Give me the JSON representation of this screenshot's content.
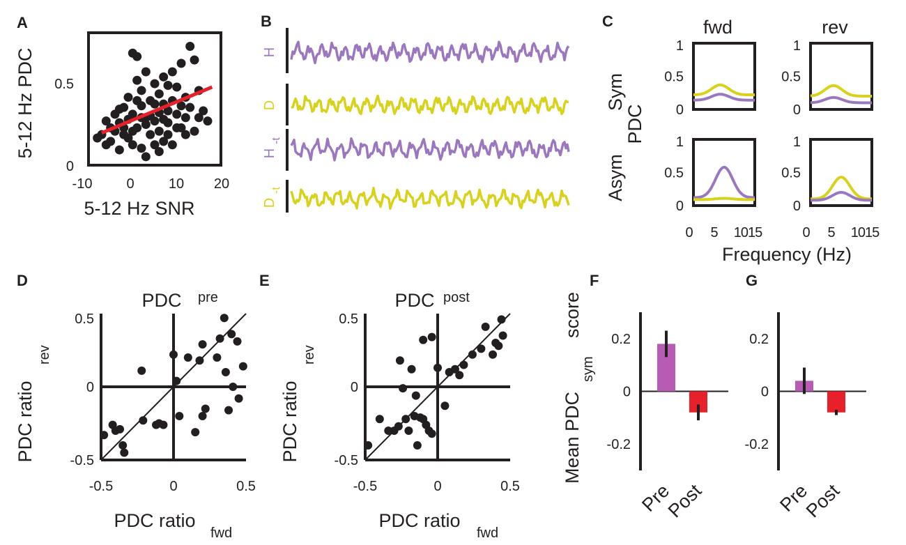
{
  "colors": {
    "purple": "#9b77c0",
    "yellow": "#d8d21c",
    "red": "#e8202a",
    "magenta": "#b75bb4",
    "black": "#231f20",
    "fitline": "#e8202a"
  },
  "chart_data": [
    {
      "panel": "A",
      "type": "scatter",
      "xlabel": "5-12 Hz SNR",
      "ylabel": "5-12 Hz PDC",
      "xlim": [
        -10,
        20
      ],
      "ylim": [
        0,
        0.78
      ],
      "xticks": [
        "-10",
        "0",
        "10",
        "20"
      ],
      "yticks": [
        "0",
        "0.5"
      ],
      "fit_line": {
        "x": [
          -7,
          18
        ],
        "y": [
          0.19,
          0.46
        ]
      },
      "points": [
        [
          -8,
          0.16
        ],
        [
          -7,
          0.18
        ],
        [
          -6,
          0.12
        ],
        [
          -5,
          0.22
        ],
        [
          -5,
          0.14
        ],
        [
          -4,
          0.3
        ],
        [
          -4,
          0.2
        ],
        [
          -3,
          0.25
        ],
        [
          -3,
          0.09
        ],
        [
          -2,
          0.34
        ],
        [
          -2,
          0.18
        ],
        [
          -1,
          0.27
        ],
        [
          -1,
          0.4
        ],
        [
          0,
          0.66
        ],
        [
          0,
          0.12
        ],
        [
          0,
          0.3
        ],
        [
          1,
          0.64
        ],
        [
          1,
          0.5
        ],
        [
          1,
          0.22
        ],
        [
          2,
          0.35
        ],
        [
          2,
          0.1
        ],
        [
          2,
          0.44
        ],
        [
          3,
          0.28
        ],
        [
          3,
          0.05
        ],
        [
          3,
          0.55
        ],
        [
          4,
          0.18
        ],
        [
          4,
          0.38
        ],
        [
          5,
          0.48
        ],
        [
          5,
          0.26
        ],
        [
          5,
          0.12
        ],
        [
          6,
          0.42
        ],
        [
          6,
          0.31
        ],
        [
          6,
          0.2
        ],
        [
          7,
          0.52
        ],
        [
          7,
          0.36
        ],
        [
          7,
          0.14
        ],
        [
          8,
          0.47
        ],
        [
          8,
          0.25
        ],
        [
          9,
          0.38
        ],
        [
          9,
          0.55
        ],
        [
          9,
          0.12
        ],
        [
          10,
          0.3
        ],
        [
          10,
          0.46
        ],
        [
          11,
          0.22
        ],
        [
          11,
          0.6
        ],
        [
          12,
          0.4
        ],
        [
          12,
          0.28
        ],
        [
          13,
          0.7
        ],
        [
          13,
          0.34
        ],
        [
          14,
          0.62
        ],
        [
          14,
          0.2
        ],
        [
          15,
          0.44
        ],
        [
          16,
          0.32
        ],
        [
          17,
          0.26
        ],
        [
          -6,
          0.26
        ],
        [
          -2,
          0.22
        ],
        [
          0,
          0.2
        ],
        [
          3,
          0.24
        ],
        [
          6,
          0.08
        ],
        [
          8,
          0.18
        ],
        [
          10,
          0.22
        ],
        [
          -3,
          0.33
        ],
        [
          1,
          0.38
        ],
        [
          4,
          0.29
        ],
        [
          7,
          0.27
        ],
        [
          11,
          0.35
        ],
        [
          -1,
          0.16
        ],
        [
          2,
          0.28
        ],
        [
          5,
          0.36
        ],
        [
          8,
          0.32
        ],
        [
          12,
          0.18
        ],
        [
          15,
          0.28
        ]
      ]
    },
    {
      "panel": "B",
      "type": "line",
      "series": [
        {
          "name": "H",
          "color": "purple"
        },
        {
          "name": "D",
          "color": "yellow"
        },
        {
          "name": "H_-t",
          "color": "purple"
        },
        {
          "name": "D_-t",
          "color": "yellow"
        }
      ]
    },
    {
      "panel": "C",
      "type": "line",
      "columns": [
        "fwd",
        "rev"
      ],
      "rows": [
        "Sym",
        "Asym"
      ],
      "ylabel": "PDC",
      "xlabel": "Frequency (Hz)",
      "xticks": [
        "0",
        "5",
        "10",
        "15"
      ],
      "yticks": [
        "0",
        "0.5",
        "1"
      ],
      "xlim": [
        0,
        16
      ],
      "ylim": [
        0,
        1
      ],
      "subplots": [
        {
          "row": "Sym",
          "col": "fwd",
          "series": [
            {
              "name": "yellow",
              "peak_freq": 7,
              "base": 0.22,
              "peak": 0.37
            },
            {
              "name": "purple",
              "peak_freq": 7,
              "base": 0.14,
              "peak": 0.23
            }
          ]
        },
        {
          "row": "Sym",
          "col": "rev",
          "series": [
            {
              "name": "yellow",
              "peak_freq": 6,
              "base": 0.2,
              "peak": 0.36
            },
            {
              "name": "purple",
              "peak_freq": 6,
              "base": 0.1,
              "peak": 0.18
            }
          ]
        },
        {
          "row": "Asym",
          "col": "fwd",
          "series": [
            {
              "name": "purple",
              "peak_freq": 8,
              "base": 0.12,
              "peak": 0.58
            },
            {
              "name": "yellow",
              "peak_freq": 8,
              "base": 0.09,
              "peak": 0.11
            }
          ]
        },
        {
          "row": "Asym",
          "col": "rev",
          "series": [
            {
              "name": "yellow",
              "peak_freq": 8,
              "base": 0.1,
              "peak": 0.43
            },
            {
              "name": "purple",
              "peak_freq": 8,
              "base": 0.08,
              "peak": 0.2
            }
          ]
        }
      ]
    },
    {
      "panel": "D",
      "type": "scatter",
      "title": "PDC",
      "title_sub": "pre",
      "xlabel": "PDC ratio",
      "xlabel_sub": "fwd",
      "ylabel": "PDC ratio",
      "ylabel_sub": "rev",
      "xlim": [
        -0.5,
        0.5
      ],
      "ylim": [
        -0.5,
        0.5
      ],
      "xticks": [
        "-0.5",
        "0",
        "0.5"
      ],
      "yticks": [
        "-0.5",
        "0",
        "0.5"
      ],
      "points": [
        [
          -0.48,
          -0.33
        ],
        [
          -0.42,
          -0.26
        ],
        [
          -0.4,
          -0.3
        ],
        [
          -0.37,
          -0.29
        ],
        [
          -0.35,
          -0.4
        ],
        [
          -0.34,
          -0.45
        ],
        [
          -0.22,
          0.11
        ],
        [
          -0.21,
          -0.23
        ],
        [
          -0.12,
          -0.26
        ],
        [
          -0.1,
          -0.25
        ],
        [
          -0.07,
          -0.26
        ],
        [
          0.0,
          0.22
        ],
        [
          0.02,
          0.04
        ],
        [
          0.04,
          -0.2
        ],
        [
          0.1,
          0.2
        ],
        [
          0.15,
          -0.31
        ],
        [
          0.18,
          0.18
        ],
        [
          0.2,
          0.29
        ],
        [
          0.22,
          -0.15
        ],
        [
          0.3,
          0.2
        ],
        [
          0.32,
          0.33
        ],
        [
          0.35,
          0.47
        ],
        [
          0.36,
          0.1
        ],
        [
          0.38,
          -0.16
        ],
        [
          0.4,
          0.36
        ],
        [
          0.41,
          0.0
        ],
        [
          0.44,
          0.31
        ],
        [
          0.45,
          -0.08
        ],
        [
          0.48,
          0.14
        ],
        [
          0.2,
          -0.2
        ]
      ]
    },
    {
      "panel": "E",
      "type": "scatter",
      "title": "PDC",
      "title_sub": "post",
      "xlabel": "PDC ratio",
      "xlabel_sub": "fwd",
      "ylabel": "PDC ratio",
      "ylabel_sub": "rev",
      "xlim": [
        -0.5,
        0.5
      ],
      "ylim": [
        -0.5,
        0.5
      ],
      "xticks": [
        "-0.5",
        "0",
        "0.5"
      ],
      "yticks": [
        "-0.5",
        "0",
        "0.5"
      ],
      "points": [
        [
          -0.48,
          -0.4
        ],
        [
          -0.4,
          -0.22
        ],
        [
          -0.34,
          -0.3
        ],
        [
          -0.3,
          -0.3
        ],
        [
          -0.27,
          -0.27
        ],
        [
          -0.26,
          0.18
        ],
        [
          -0.24,
          -0.01
        ],
        [
          -0.22,
          -0.22
        ],
        [
          -0.2,
          -0.3
        ],
        [
          -0.18,
          0.12
        ],
        [
          -0.16,
          -0.2
        ],
        [
          -0.14,
          -0.4
        ],
        [
          -0.12,
          -0.21
        ],
        [
          -0.1,
          -0.22
        ],
        [
          -0.08,
          -0.26
        ],
        [
          -0.06,
          -0.3
        ],
        [
          -0.04,
          -0.32
        ],
        [
          -0.1,
          0.32
        ],
        [
          -0.04,
          0.34
        ],
        [
          0.0,
          0.13
        ],
        [
          0.05,
          -0.13
        ],
        [
          0.08,
          0.1
        ],
        [
          0.12,
          0.12
        ],
        [
          0.18,
          0.15
        ],
        [
          0.24,
          0.22
        ],
        [
          0.3,
          0.26
        ],
        [
          0.33,
          0.41
        ],
        [
          0.38,
          0.22
        ],
        [
          0.4,
          0.3
        ],
        [
          0.42,
          0.28
        ],
        [
          0.44,
          0.46
        ],
        [
          0.45,
          0.35
        ],
        [
          -0.15,
          -0.06
        ],
        [
          0.15,
          0.08
        ]
      ]
    },
    {
      "panel": "F",
      "type": "bar",
      "ylabel": "Mean PDC",
      "ylabel_sub": "sym",
      "ylabel_suffix": "score",
      "categories": [
        "Pre",
        "Post"
      ],
      "values": [
        0.18,
        -0.08
      ],
      "errors": [
        0.05,
        0.03
      ],
      "bar_colors": [
        "magenta",
        "red"
      ],
      "ylim": [
        -0.3,
        0.3
      ],
      "yticks": [
        "-0.2",
        "0",
        "0.2"
      ]
    },
    {
      "panel": "G",
      "type": "bar",
      "categories": [
        "Pre",
        "Post"
      ],
      "values": [
        0.04,
        -0.08
      ],
      "errors": [
        0.05,
        0.01
      ],
      "bar_colors": [
        "magenta",
        "red"
      ],
      "ylim": [
        -0.3,
        0.3
      ],
      "yticks": [
        "-0.2",
        "0",
        "0.2"
      ]
    }
  ],
  "labels": {
    "A": "A",
    "B": "B",
    "C": "C",
    "D": "D",
    "E": "E",
    "F": "F",
    "G": "G"
  },
  "trace_labels": {
    "H": "H",
    "D": "D",
    "Ht": "H",
    "Ht_sub": "-t",
    "Dt": "D",
    "Dt_sub": "-t"
  }
}
